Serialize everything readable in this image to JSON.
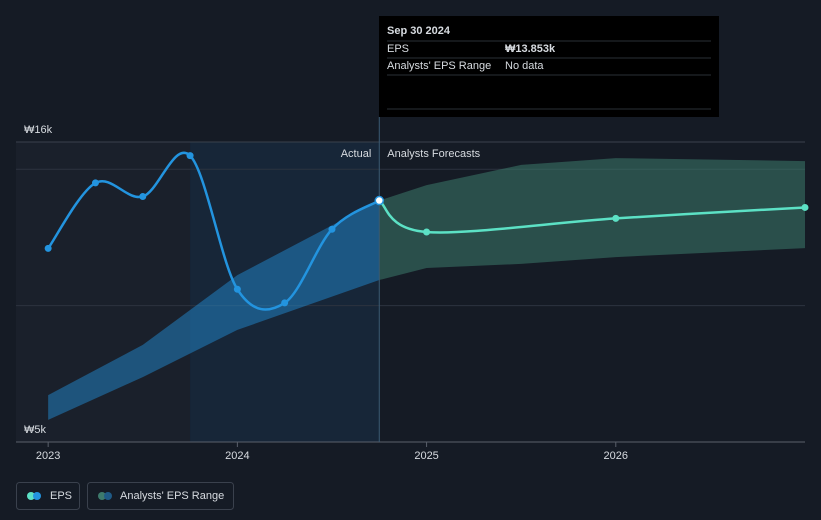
{
  "chart_data": {
    "type": "line",
    "xlim": [
      2022.83,
      2027.0
    ],
    "xticks": [
      2023,
      2024,
      2025,
      2026
    ],
    "ylim": [
      5000,
      16000
    ],
    "yticks": [
      {
        "value": 16000,
        "label": "₩16k"
      },
      {
        "value": 5000,
        "label": "₩5k"
      }
    ],
    "gridlines": [
      10000,
      15000
    ],
    "forecast_start": 2024.75,
    "highlight_start": 2023.75,
    "labels": {
      "actual": "Actual",
      "forecast": "Analysts Forecasts"
    },
    "series": [
      {
        "name": "EPS",
        "color": "#2394df",
        "forecast_color": "#5ce1c5",
        "x": [
          2023.0,
          2023.25,
          2023.5,
          2023.75,
          2024.0,
          2024.25,
          2024.5,
          2024.75,
          2025.0,
          2026.0,
          2027.0
        ],
        "values": [
          12100,
          14500,
          14000,
          15500,
          10600,
          10100,
          12800,
          13853,
          12700,
          13200,
          13600
        ]
      }
    ],
    "range": {
      "name": "Analysts' EPS Range",
      "color": "#2394df",
      "forecast_color": "#3d7a6c",
      "x": [
        2023.0,
        2023.5,
        2024.0,
        2024.75,
        2025.0,
        2025.5,
        2026.0,
        2027.0
      ],
      "low": [
        5810,
        7380,
        9110,
        10940,
        11380,
        11530,
        11780,
        12110
      ],
      "high": [
        6720,
        8560,
        11120,
        13853,
        14420,
        15160,
        15410,
        15300
      ]
    },
    "tooltip": {
      "date": "Sep 30 2024",
      "eps_label": "EPS",
      "eps_value": "₩13.853k",
      "range_label": "Analysts' EPS Range",
      "range_value": "No data"
    }
  }
}
